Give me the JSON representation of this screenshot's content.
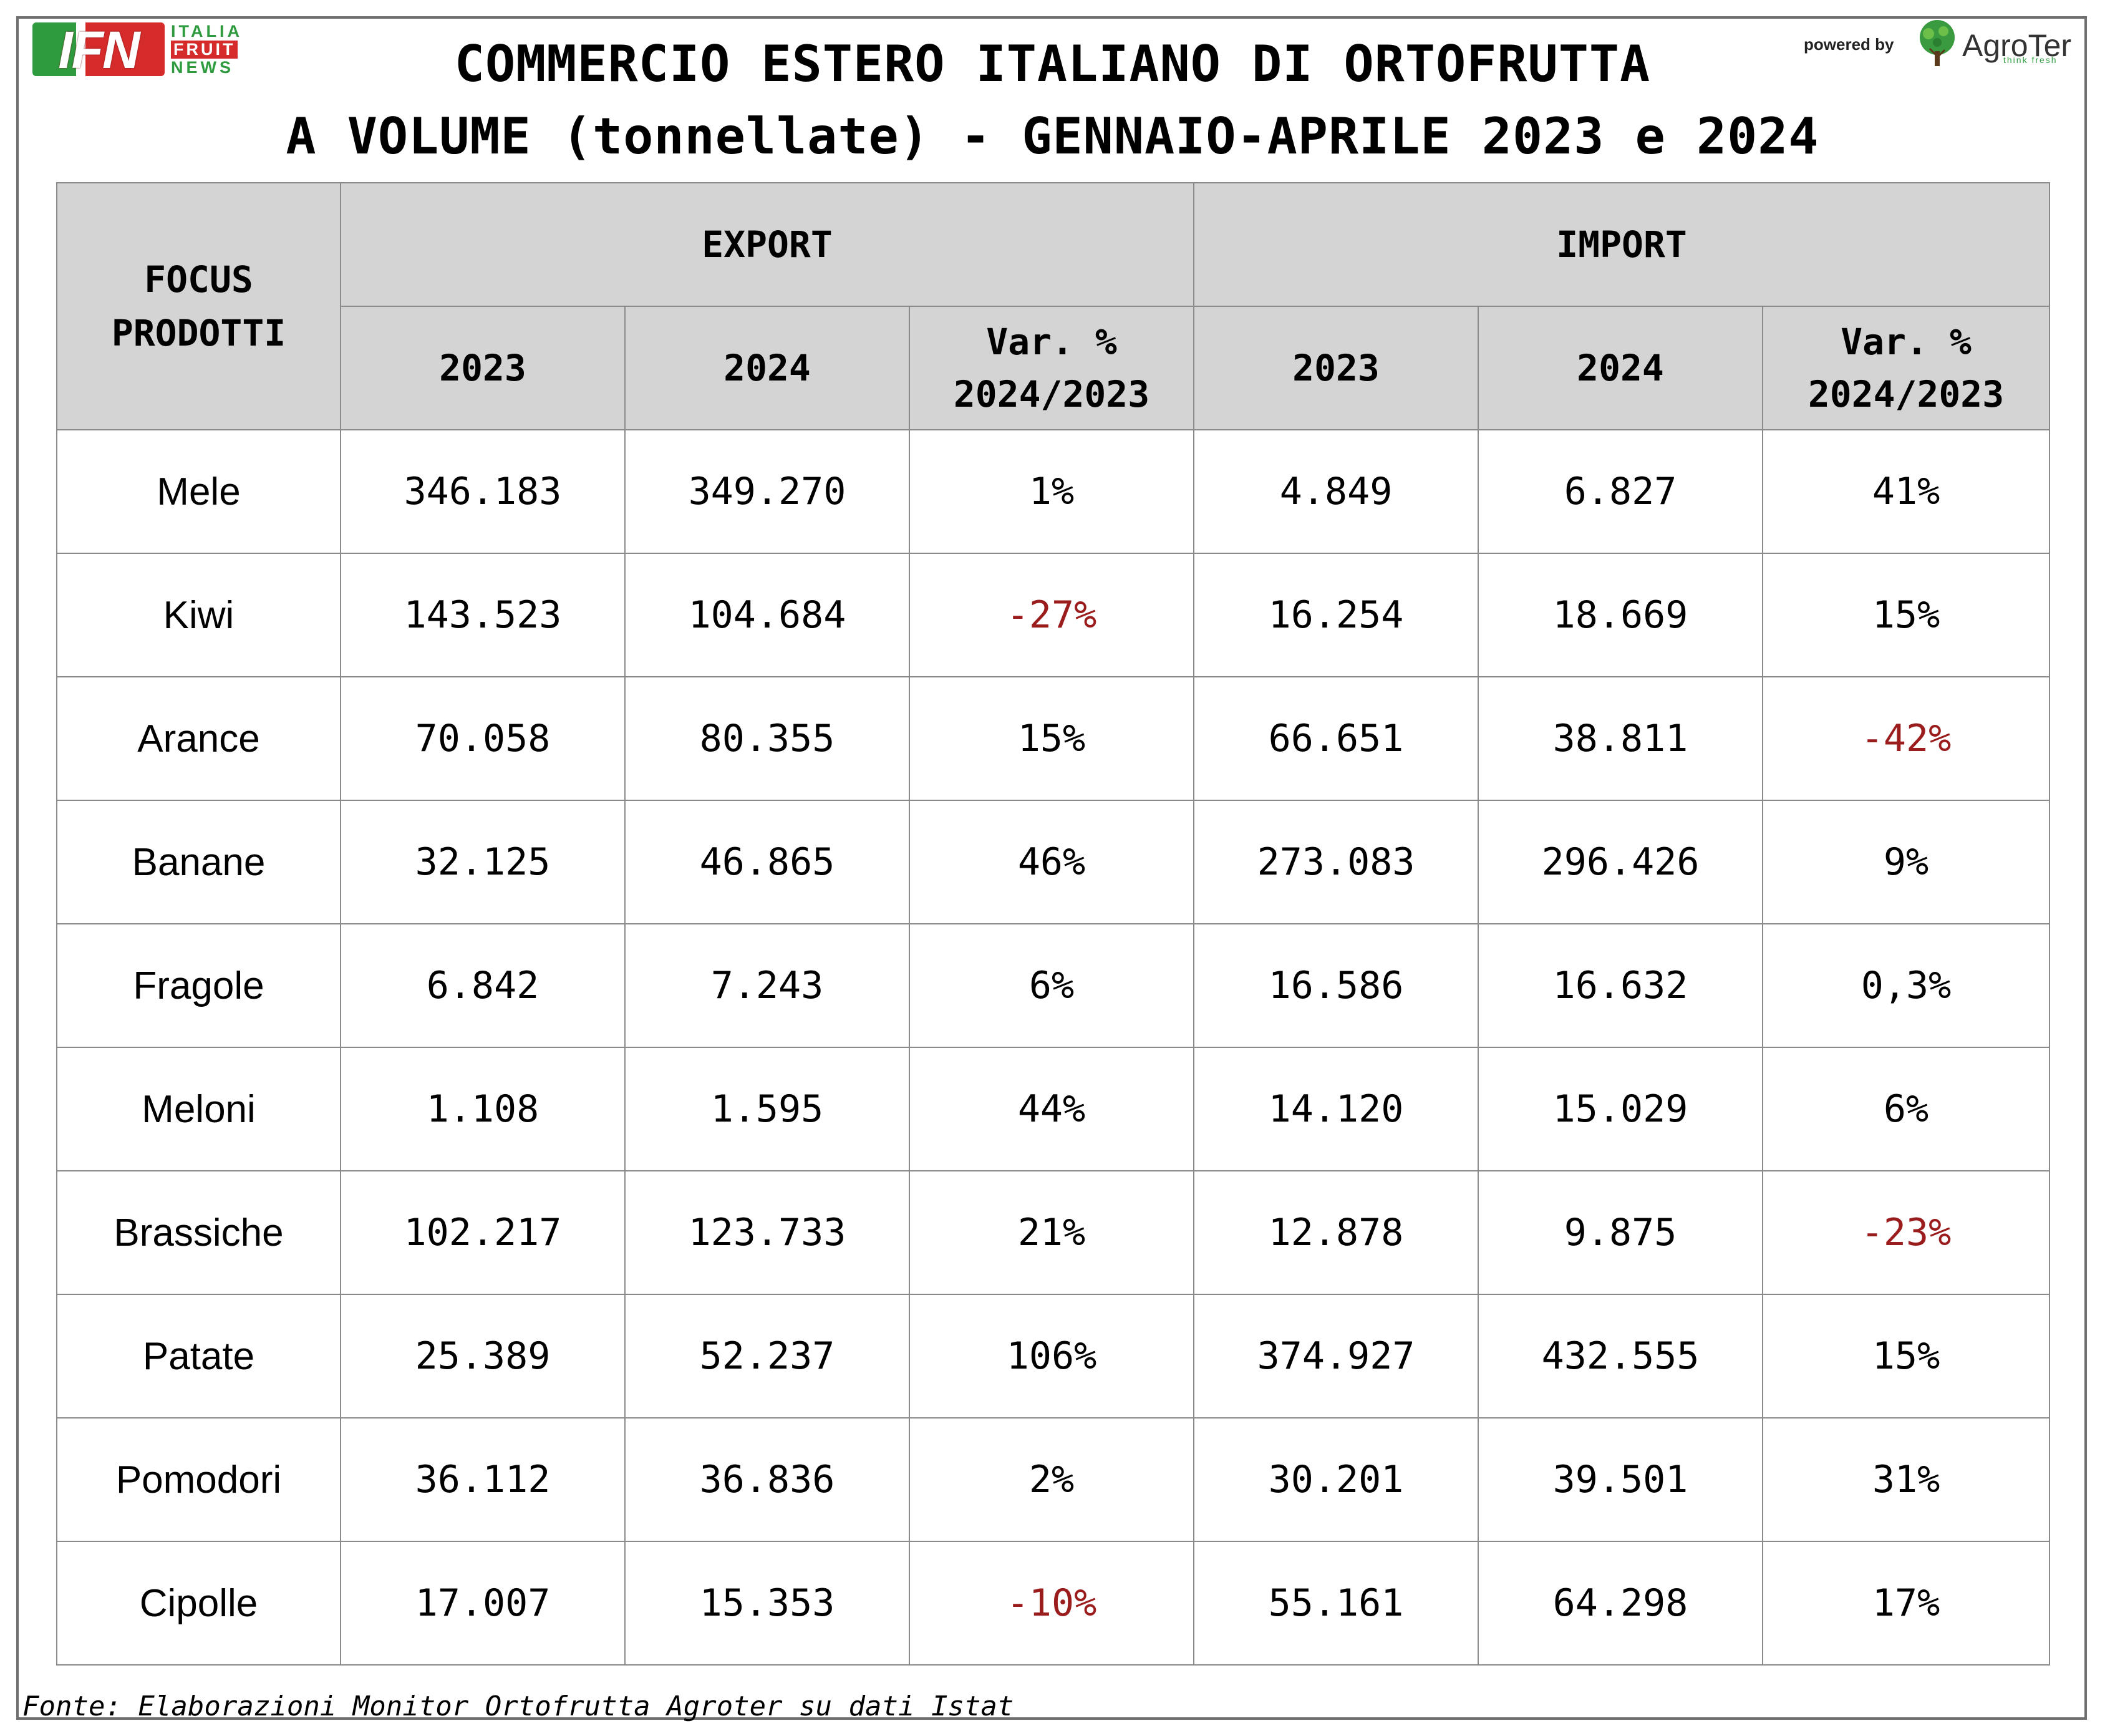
{
  "title": {
    "line1": "COMMERCIO ESTERO ITALIANO DI ORTOFRUTTA",
    "line2": "A VOLUME (tonnellate) - GENNAIO-APRILE 2023 e 2024"
  },
  "logos": {
    "ifn": {
      "letters": "IFN",
      "w1": "ITALIA",
      "w2": "FRUIT",
      "w3": "NEWS"
    },
    "agroter": {
      "powered_by": "powered by",
      "name": "AgroTer",
      "tagline": "think fresh",
      "icon": "tree-icon"
    }
  },
  "colors": {
    "header_bg": "#d4d4d4",
    "negative": "#9b1c1c",
    "grid": "#8a8a8a"
  },
  "table": {
    "focus_header": "FOCUS PRODOTTI",
    "export_header": "EXPORT",
    "import_header": "IMPORT",
    "col_2023": "2023",
    "col_2024": "2024",
    "col_var_l1": "Var. %",
    "col_var_l2": "2024/2023",
    "rows": [
      {
        "product": "Mele",
        "exp_2023": "346.183",
        "exp_2024": "349.270",
        "exp_var": "1%",
        "imp_2023": "4.849",
        "imp_2024": "6.827",
        "imp_var": "41%"
      },
      {
        "product": "Kiwi",
        "exp_2023": "143.523",
        "exp_2024": "104.684",
        "exp_var": "-27%",
        "imp_2023": "16.254",
        "imp_2024": "18.669",
        "imp_var": "15%"
      },
      {
        "product": "Arance",
        "exp_2023": "70.058",
        "exp_2024": "80.355",
        "exp_var": "15%",
        "imp_2023": "66.651",
        "imp_2024": "38.811",
        "imp_var": "-42%"
      },
      {
        "product": "Banane",
        "exp_2023": "32.125",
        "exp_2024": "46.865",
        "exp_var": "46%",
        "imp_2023": "273.083",
        "imp_2024": "296.426",
        "imp_var": "9%"
      },
      {
        "product": "Fragole",
        "exp_2023": "6.842",
        "exp_2024": "7.243",
        "exp_var": "6%",
        "imp_2023": "16.586",
        "imp_2024": "16.632",
        "imp_var": "0,3%"
      },
      {
        "product": "Meloni",
        "exp_2023": "1.108",
        "exp_2024": "1.595",
        "exp_var": "44%",
        "imp_2023": "14.120",
        "imp_2024": "15.029",
        "imp_var": "6%"
      },
      {
        "product": "Brassiche",
        "exp_2023": "102.217",
        "exp_2024": "123.733",
        "exp_var": "21%",
        "imp_2023": "12.878",
        "imp_2024": "9.875",
        "imp_var": "-23%"
      },
      {
        "product": "Patate",
        "exp_2023": "25.389",
        "exp_2024": "52.237",
        "exp_var": "106%",
        "imp_2023": "374.927",
        "imp_2024": "432.555",
        "imp_var": "15%"
      },
      {
        "product": "Pomodori",
        "exp_2023": "36.112",
        "exp_2024": "36.836",
        "exp_var": "2%",
        "imp_2023": "30.201",
        "imp_2024": "39.501",
        "imp_var": "31%"
      },
      {
        "product": "Cipolle",
        "exp_2023": "17.007",
        "exp_2024": "15.353",
        "exp_var": "-10%",
        "imp_2023": "55.161",
        "imp_2024": "64.298",
        "imp_var": "17%"
      }
    ]
  },
  "source": "Fonte: Elaborazioni Monitor Ortofrutta Agroter su dati Istat"
}
